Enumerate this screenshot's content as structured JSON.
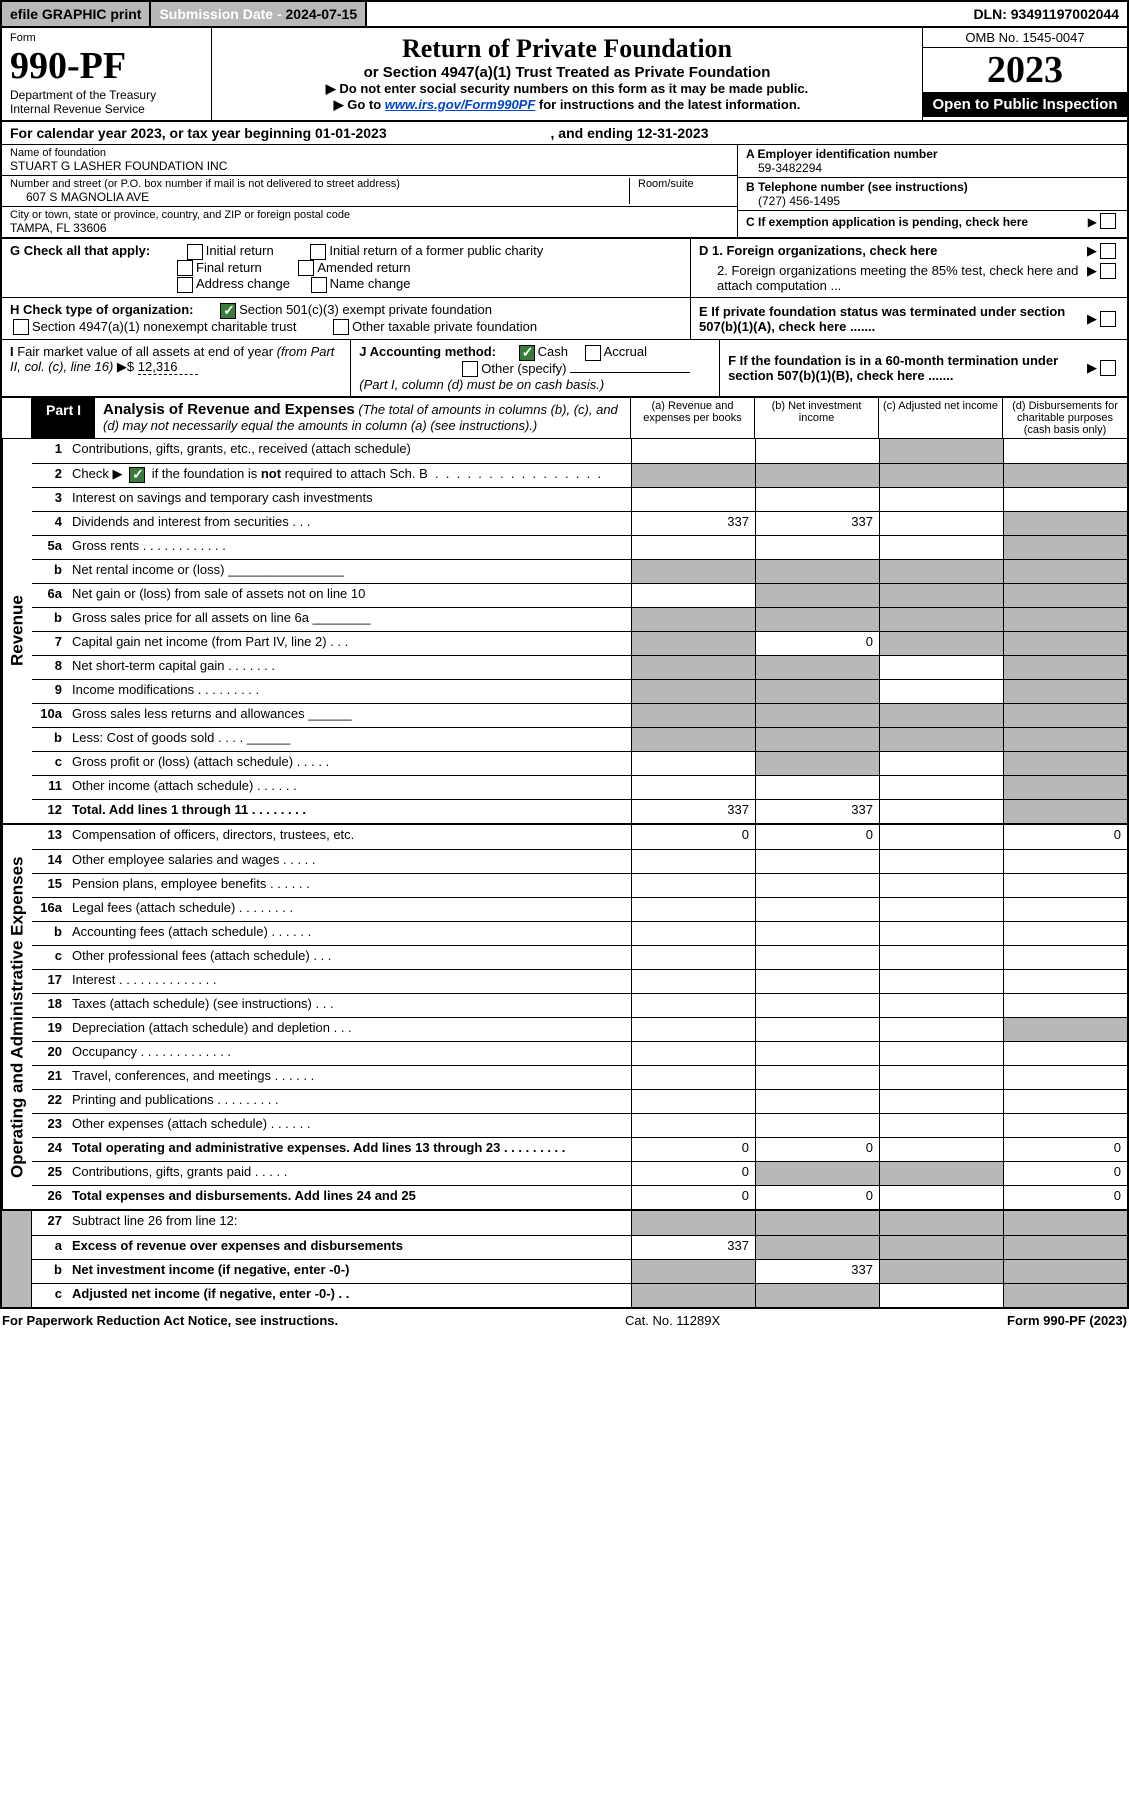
{
  "top": {
    "efile": "efile GRAPHIC print",
    "subdate_label": "Submission Date - ",
    "subdate": "2024-07-15",
    "dln_label": "DLN: ",
    "dln": "93491197002044"
  },
  "header": {
    "form_label": "Form",
    "form_no": "990-PF",
    "dept1": "Department of the Treasury",
    "dept2": "Internal Revenue Service",
    "title": "Return of Private Foundation",
    "subtitle": "or Section 4947(a)(1) Trust Treated as Private Foundation",
    "note1": "▶ Do not enter social security numbers on this form as it may be made public.",
    "note2_pre": "▶ Go to ",
    "note2_link": "www.irs.gov/Form990PF",
    "note2_post": " for instructions and the latest information.",
    "omb": "OMB No. 1545-0047",
    "year": "2023",
    "open_inspect": "Open to Public Inspection"
  },
  "calyear": {
    "text_pre": "For calendar year 2023, or tax year beginning ",
    "begin": "01-01-2023",
    "text_mid": " , and ending ",
    "end": "12-31-2023"
  },
  "foundation": {
    "name_label": "Name of foundation",
    "name": "STUART G LASHER FOUNDATION INC",
    "addr_label": "Number and street (or P.O. box number if mail is not delivered to street address)",
    "room_label": "Room/suite",
    "addr": "607 S MAGNOLIA AVE",
    "city_label": "City or town, state or province, country, and ZIP or foreign postal code",
    "city": "TAMPA, FL  33606",
    "ein_label": "A Employer identification number",
    "ein": "59-3482294",
    "phone_label": "B Telephone number (see instructions)",
    "phone": "(727) 456-1495",
    "c_label": "C If exemption application is pending, check here"
  },
  "checks": {
    "g_label": "G Check all that apply:",
    "g1": "Initial return",
    "g2": "Initial return of a former public charity",
    "g3": "Final return",
    "g4": "Amended return",
    "g5": "Address change",
    "g6": "Name change",
    "d1": "D 1. Foreign organizations, check here",
    "d2": "2. Foreign organizations meeting the 85% test, check here and attach computation ...",
    "h_label": "H Check type of organization:",
    "h1": "Section 501(c)(3) exempt private foundation",
    "h2": "Section 4947(a)(1) nonexempt charitable trust",
    "h3": "Other taxable private foundation",
    "e_label": "E  If private foundation status was terminated under section 507(b)(1)(A), check here .......",
    "i_label": "I Fair market value of all assets at end of year (from Part II, col. (c), line 16) ▶$ ",
    "i_value": "12,316",
    "j_label": "J Accounting method:",
    "j1": "Cash",
    "j2": "Accrual",
    "j3": "Other (specify)",
    "j_note": "(Part I, column (d) must be on cash basis.)",
    "f_label": "F  If the foundation is in a 60-month termination under section 507(b)(1)(B), check here ......."
  },
  "part1": {
    "part_label": "Part I",
    "title": "Analysis of Revenue and Expenses",
    "title_note": " (The total of amounts in columns (b), (c), and (d) may not necessarily equal the amounts in column (a) (see instructions).)",
    "col_a": "(a) Revenue and expenses per books",
    "col_b": "(b) Net investment income",
    "col_c": "(c) Adjusted net income",
    "col_d": "(d) Disbursements for charitable purposes (cash basis only)"
  },
  "side_labels": {
    "revenue": "Revenue",
    "expenses": "Operating and Administrative Expenses"
  },
  "lines": [
    {
      "no": "1",
      "desc": "Contributions, gifts, grants, etc., received (attach schedule)",
      "cols": [
        "",
        "",
        "shaded",
        ""
      ],
      "vals": [
        "",
        "",
        "",
        ""
      ]
    },
    {
      "no": "2",
      "desc": "Check ▶ ☑ if the foundation is not required to attach Sch. B  .  .  .  .  .  .  .  .  .  .  .  .  .  .  .  .",
      "cols": [
        "shaded",
        "shaded",
        "shaded",
        "shaded"
      ],
      "vals": [
        "",
        "",
        "",
        ""
      ],
      "checked": true
    },
    {
      "no": "3",
      "desc": "Interest on savings and temporary cash investments",
      "cols": [
        "",
        "",
        "",
        ""
      ],
      "vals": [
        "",
        "",
        "",
        ""
      ]
    },
    {
      "no": "4",
      "desc": "Dividends and interest from securities  .  .  .",
      "cols": [
        "",
        "",
        "",
        "shaded"
      ],
      "vals": [
        "337",
        "337",
        "",
        ""
      ]
    },
    {
      "no": "5a",
      "desc": "Gross rents  .  .  .  .  .  .  .  .  .  .  .  .",
      "cols": [
        "",
        "",
        "",
        "shaded"
      ],
      "vals": [
        "",
        "",
        "",
        ""
      ]
    },
    {
      "no": "b",
      "desc": "Net rental income or (loss) ________________",
      "cols": [
        "shaded",
        "shaded",
        "shaded",
        "shaded"
      ],
      "vals": [
        "",
        "",
        "",
        ""
      ]
    },
    {
      "no": "6a",
      "desc": "Net gain or (loss) from sale of assets not on line 10",
      "cols": [
        "",
        "shaded",
        "shaded",
        "shaded"
      ],
      "vals": [
        "",
        "",
        "",
        ""
      ]
    },
    {
      "no": "b",
      "desc": "Gross sales price for all assets on line 6a ________",
      "cols": [
        "shaded",
        "shaded",
        "shaded",
        "shaded"
      ],
      "vals": [
        "",
        "",
        "",
        ""
      ]
    },
    {
      "no": "7",
      "desc": "Capital gain net income (from Part IV, line 2)  .  .  .",
      "cols": [
        "shaded",
        "",
        "shaded",
        "shaded"
      ],
      "vals": [
        "",
        "0",
        "",
        ""
      ]
    },
    {
      "no": "8",
      "desc": "Net short-term capital gain  .  .  .  .  .  .  .",
      "cols": [
        "shaded",
        "shaded",
        "",
        "shaded"
      ],
      "vals": [
        "",
        "",
        "",
        ""
      ]
    },
    {
      "no": "9",
      "desc": "Income modifications  .  .  .  .  .  .  .  .  .",
      "cols": [
        "shaded",
        "shaded",
        "",
        "shaded"
      ],
      "vals": [
        "",
        "",
        "",
        ""
      ]
    },
    {
      "no": "10a",
      "desc": "Gross sales less returns and allowances  ______",
      "cols": [
        "shaded",
        "shaded",
        "shaded",
        "shaded"
      ],
      "vals": [
        "",
        "",
        "",
        ""
      ]
    },
    {
      "no": "b",
      "desc": "Less: Cost of goods sold  .  .  .  .  ______",
      "cols": [
        "shaded",
        "shaded",
        "shaded",
        "shaded"
      ],
      "vals": [
        "",
        "",
        "",
        ""
      ]
    },
    {
      "no": "c",
      "desc": "Gross profit or (loss) (attach schedule)  .  .  .  .  .",
      "cols": [
        "",
        "shaded",
        "",
        "shaded"
      ],
      "vals": [
        "",
        "",
        "",
        ""
      ]
    },
    {
      "no": "11",
      "desc": "Other income (attach schedule)  .  .  .  .  .  .",
      "cols": [
        "",
        "",
        "",
        "shaded"
      ],
      "vals": [
        "",
        "",
        "",
        ""
      ]
    },
    {
      "no": "12",
      "desc": "Total. Add lines 1 through 11  .  .  .  .  .  .  .  .",
      "cols": [
        "",
        "",
        "",
        "shaded"
      ],
      "vals": [
        "337",
        "337",
        "",
        ""
      ],
      "bold": true
    }
  ],
  "exp_lines": [
    {
      "no": "13",
      "desc": "Compensation of officers, directors, trustees, etc.",
      "cols": [
        "",
        "",
        "",
        ""
      ],
      "vals": [
        "0",
        "0",
        "",
        "0"
      ]
    },
    {
      "no": "14",
      "desc": "Other employee salaries and wages  .  .  .  .  .",
      "cols": [
        "",
        "",
        "",
        ""
      ],
      "vals": [
        "",
        "",
        "",
        ""
      ]
    },
    {
      "no": "15",
      "desc": "Pension plans, employee benefits  .  .  .  .  .  .",
      "cols": [
        "",
        "",
        "",
        ""
      ],
      "vals": [
        "",
        "",
        "",
        ""
      ]
    },
    {
      "no": "16a",
      "desc": "Legal fees (attach schedule)  .  .  .  .  .  .  .  .",
      "cols": [
        "",
        "",
        "",
        ""
      ],
      "vals": [
        "",
        "",
        "",
        ""
      ]
    },
    {
      "no": "b",
      "desc": "Accounting fees (attach schedule)  .  .  .  .  .  .",
      "cols": [
        "",
        "",
        "",
        ""
      ],
      "vals": [
        "",
        "",
        "",
        ""
      ]
    },
    {
      "no": "c",
      "desc": "Other professional fees (attach schedule)  .  .  .",
      "cols": [
        "",
        "",
        "",
        ""
      ],
      "vals": [
        "",
        "",
        "",
        ""
      ]
    },
    {
      "no": "17",
      "desc": "Interest  .  .  .  .  .  .  .  .  .  .  .  .  .  .",
      "cols": [
        "",
        "",
        "",
        ""
      ],
      "vals": [
        "",
        "",
        "",
        ""
      ]
    },
    {
      "no": "18",
      "desc": "Taxes (attach schedule) (see instructions)  .  .  .",
      "cols": [
        "",
        "",
        "",
        ""
      ],
      "vals": [
        "",
        "",
        "",
        ""
      ]
    },
    {
      "no": "19",
      "desc": "Depreciation (attach schedule) and depletion  .  .  .",
      "cols": [
        "",
        "",
        "",
        "shaded"
      ],
      "vals": [
        "",
        "",
        "",
        ""
      ]
    },
    {
      "no": "20",
      "desc": "Occupancy  .  .  .  .  .  .  .  .  .  .  .  .  .",
      "cols": [
        "",
        "",
        "",
        ""
      ],
      "vals": [
        "",
        "",
        "",
        ""
      ]
    },
    {
      "no": "21",
      "desc": "Travel, conferences, and meetings  .  .  .  .  .  .",
      "cols": [
        "",
        "",
        "",
        ""
      ],
      "vals": [
        "",
        "",
        "",
        ""
      ]
    },
    {
      "no": "22",
      "desc": "Printing and publications  .  .  .  .  .  .  .  .  .",
      "cols": [
        "",
        "",
        "",
        ""
      ],
      "vals": [
        "",
        "",
        "",
        ""
      ]
    },
    {
      "no": "23",
      "desc": "Other expenses (attach schedule)  .  .  .  .  .  .",
      "cols": [
        "",
        "",
        "",
        ""
      ],
      "vals": [
        "",
        "",
        "",
        ""
      ]
    },
    {
      "no": "24",
      "desc": "Total operating and administrative expenses. Add lines 13 through 23  .  .  .  .  .  .  .  .  .",
      "cols": [
        "",
        "",
        "",
        ""
      ],
      "vals": [
        "0",
        "0",
        "",
        "0"
      ],
      "bold": true
    },
    {
      "no": "25",
      "desc": "Contributions, gifts, grants paid  .  .  .  .  .",
      "cols": [
        "",
        "shaded",
        "shaded",
        ""
      ],
      "vals": [
        "0",
        "",
        "",
        "0"
      ]
    },
    {
      "no": "26",
      "desc": "Total expenses and disbursements. Add lines 24 and 25",
      "cols": [
        "",
        "",
        "",
        ""
      ],
      "vals": [
        "0",
        "0",
        "",
        "0"
      ],
      "bold": true
    }
  ],
  "bottom_lines": [
    {
      "no": "27",
      "desc": "Subtract line 26 from line 12:",
      "cols": [
        "shaded",
        "shaded",
        "shaded",
        "shaded"
      ],
      "vals": [
        "",
        "",
        "",
        ""
      ]
    },
    {
      "no": "a",
      "desc": "Excess of revenue over expenses and disbursements",
      "cols": [
        "",
        "shaded",
        "shaded",
        "shaded"
      ],
      "vals": [
        "337",
        "",
        "",
        ""
      ],
      "bold": true
    },
    {
      "no": "b",
      "desc": "Net investment income (if negative, enter -0-)",
      "cols": [
        "shaded",
        "",
        "shaded",
        "shaded"
      ],
      "vals": [
        "",
        "337",
        "",
        ""
      ],
      "bold": true
    },
    {
      "no": "c",
      "desc": "Adjusted net income (if negative, enter -0-)  .  .",
      "cols": [
        "shaded",
        "shaded",
        "",
        "shaded"
      ],
      "vals": [
        "",
        "",
        "",
        ""
      ],
      "bold": true
    }
  ],
  "footer": {
    "left": "For Paperwork Reduction Act Notice, see instructions.",
    "mid": "Cat. No. 11289X",
    "right": "Form 990-PF (2023)"
  }
}
